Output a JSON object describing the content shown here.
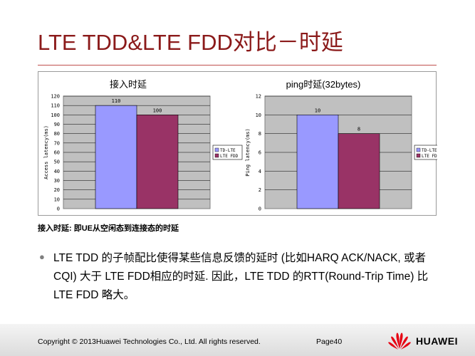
{
  "slide": {
    "title": "LTE TDD&LTE FDD对比－时延",
    "caption": "接入时延: 即UE从空闲态到连接态的时延",
    "bullet": "LTE TDD 的子帧配比使得某些信息反馈的延时 (比如HARQ ACK/NACK, 或者CQI) 大于 LTE FDD相应的时延. 因此，LTE TDD 的RTT(Round-Trip Time) 比LTE FDD 略大。"
  },
  "footer": {
    "copyright": "Copyright © 2013Huawei Technologies Co., Ltd. All rights reserved.",
    "page": "Page40",
    "brand": "HUAWEI"
  },
  "colors": {
    "title": "#8b1a1a",
    "td_lte": "#9999ff",
    "lte_fdd": "#993366",
    "plot_bg": "#c0c0c0",
    "logo": "#e60012"
  },
  "chart_data": [
    {
      "type": "bar",
      "title": "接入时延",
      "ylabel": "Access latency(ms)",
      "xlabel": "",
      "ylim": [
        0,
        120
      ],
      "yticks": [
        0,
        10,
        20,
        30,
        40,
        50,
        60,
        70,
        80,
        90,
        100,
        110,
        120
      ],
      "categories": [
        ""
      ],
      "series": [
        {
          "name": "TD-LTE",
          "values": [
            110
          ]
        },
        {
          "name": "LTE FDD",
          "values": [
            100
          ]
        }
      ],
      "grid": true,
      "legend": "right"
    },
    {
      "type": "bar",
      "title": "ping时延(32bytes)",
      "ylabel": "Ping latency(ms)",
      "xlabel": "",
      "ylim": [
        0,
        12
      ],
      "yticks": [
        0,
        2,
        4,
        6,
        8,
        10,
        12
      ],
      "categories": [
        ""
      ],
      "series": [
        {
          "name": "TD-LTE",
          "values": [
            10
          ]
        },
        {
          "name": "LTE FDD",
          "values": [
            8
          ]
        }
      ],
      "grid": true,
      "legend": "right"
    }
  ]
}
